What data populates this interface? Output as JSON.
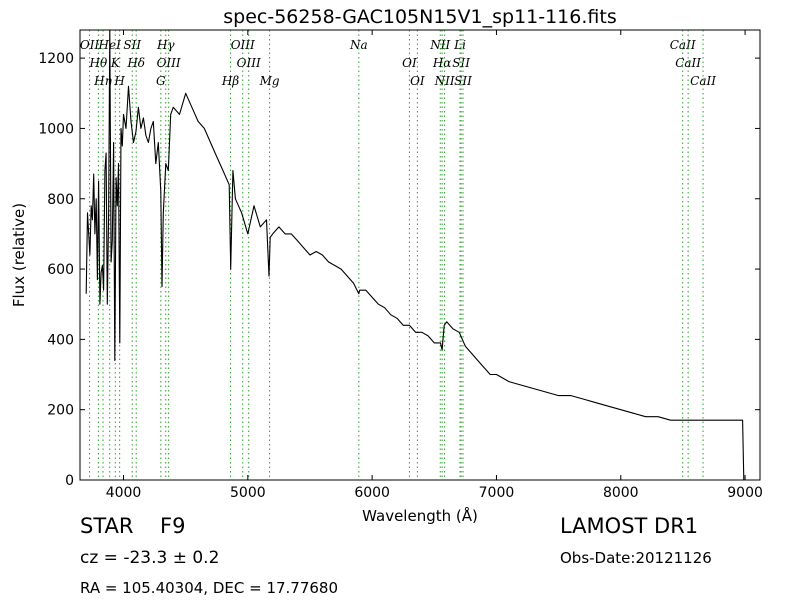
{
  "chart_data": {
    "type": "line",
    "title": "spec-56258-GAC105N15V1_sp11-116.fits",
    "xlabel": "Wavelength (Å)",
    "ylabel": "Flux (relative)",
    "xlim": [
      3650,
      9120
    ],
    "ylim": [
      0,
      1280
    ],
    "xticks": [
      4000,
      5000,
      6000,
      7000,
      8000,
      9000
    ],
    "yticks": [
      0,
      200,
      400,
      600,
      800,
      1000,
      1200
    ],
    "grid": false,
    "line_color": "#000000",
    "marker_color": "#2ca02c",
    "series": [
      {
        "x": [
          3700,
          3710,
          3720,
          3730,
          3740,
          3750,
          3760,
          3770,
          3780,
          3790,
          3800,
          3810,
          3820,
          3830,
          3840,
          3850,
          3860,
          3870,
          3880,
          3890,
          3900,
          3910,
          3920,
          3930,
          3940,
          3950,
          3960,
          3970,
          3980,
          3990,
          4000,
          4020,
          4040,
          4060,
          4080,
          4100,
          4120,
          4140,
          4160,
          4180,
          4200,
          4220,
          4240,
          4260,
          4280,
          4300,
          4310,
          4320,
          4340,
          4360,
          4380,
          4400,
          4450,
          4500,
          4550,
          4600,
          4650,
          4700,
          4750,
          4800,
          4850,
          4862,
          4880,
          4900,
          4950,
          5000,
          5050,
          5100,
          5150,
          5170,
          5180,
          5200,
          5250,
          5300,
          5350,
          5400,
          5450,
          5500,
          5550,
          5600,
          5650,
          5700,
          5750,
          5800,
          5850,
          5893,
          5900,
          5950,
          6000,
          6050,
          6100,
          6150,
          6200,
          6250,
          6300,
          6350,
          6400,
          6450,
          6500,
          6550,
          6563,
          6580,
          6600,
          6650,
          6700,
          6750,
          6800,
          6850,
          6900,
          6950,
          7000,
          7100,
          7200,
          7300,
          7400,
          7500,
          7600,
          7700,
          7800,
          7900,
          8000,
          8100,
          8200,
          8300,
          8400,
          8500,
          8600,
          8700,
          8800,
          8900,
          8980,
          8990,
          9000
        ],
        "y": [
          530,
          760,
          700,
          640,
          780,
          740,
          870,
          700,
          800,
          570,
          850,
          500,
          590,
          610,
          540,
          880,
          930,
          500,
          750,
          1280,
          620,
          680,
          960,
          340,
          860,
          780,
          900,
          390,
          1000,
          950,
          1040,
          1000,
          1120,
          1020,
          960,
          990,
          1060,
          1000,
          1030,
          980,
          960,
          1000,
          1020,
          900,
          960,
          820,
          550,
          760,
          900,
          880,
          1040,
          1060,
          1040,
          1100,
          1060,
          1020,
          1000,
          960,
          920,
          880,
          840,
          600,
          880,
          800,
          760,
          700,
          780,
          720,
          740,
          580,
          690,
          700,
          720,
          700,
          700,
          680,
          660,
          640,
          650,
          640,
          620,
          610,
          600,
          580,
          560,
          530,
          540,
          540,
          520,
          500,
          490,
          470,
          460,
          440,
          440,
          420,
          420,
          410,
          390,
          390,
          370,
          440,
          450,
          430,
          420,
          380,
          360,
          340,
          320,
          300,
          300,
          280,
          270,
          260,
          250,
          240,
          240,
          230,
          220,
          210,
          200,
          190,
          180,
          180,
          170,
          170,
          170,
          170,
          170,
          170,
          170,
          0,
          0
        ]
      }
    ],
    "annotations": [
      {
        "label": "OII",
        "wl": 3727
      },
      {
        "label": "Hθ",
        "wl": 3798
      },
      {
        "label": "Hη",
        "wl": 3835
      },
      {
        "label": "HeI",
        "wl": 3889
      },
      {
        "label": "K",
        "wl": 3934
      },
      {
        "label": "H",
        "wl": 3969
      },
      {
        "label": "SII",
        "wl": 4070
      },
      {
        "label": "Hδ",
        "wl": 4102
      },
      {
        "label": "G",
        "wl": 4300
      },
      {
        "label": "Hγ",
        "wl": 4340
      },
      {
        "label": "OIII",
        "wl": 4363
      },
      {
        "label": "Hβ",
        "wl": 4861
      },
      {
        "label": "OIII",
        "wl": 4959
      },
      {
        "label": "OIII",
        "wl": 5007
      },
      {
        "label": "Mg",
        "wl": 5175
      },
      {
        "label": "Na",
        "wl": 5893
      },
      {
        "label": "OI",
        "wl": 6300
      },
      {
        "label": "OI",
        "wl": 6364
      },
      {
        "label": "NII",
        "wl": 6548
      },
      {
        "label": "Hα",
        "wl": 6563
      },
      {
        "label": "NII",
        "wl": 6583
      },
      {
        "label": "Li",
        "wl": 6707
      },
      {
        "label": "SII",
        "wl": 6716
      },
      {
        "label": "SII",
        "wl": 6731
      },
      {
        "label": "CaII",
        "wl": 8498
      },
      {
        "label": "CaII",
        "wl": 8542
      },
      {
        "label": "CaII",
        "wl": 8662
      }
    ]
  },
  "info": {
    "class": "STAR",
    "subclass": "F9",
    "redshift": "cz = -23.3 ± 0.2",
    "coords": "RA = 105.40304, DEC = 17.77680",
    "survey": "LAMOST DR1",
    "obs_date": "Obs-Date:20121126"
  }
}
